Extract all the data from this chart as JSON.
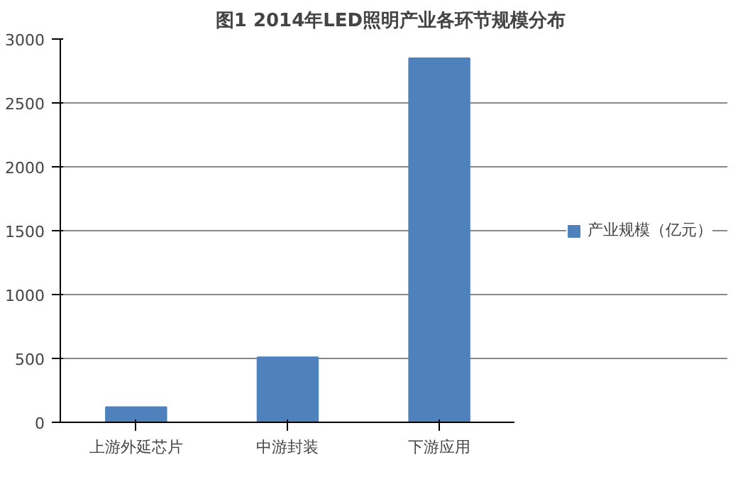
{
  "chart_data": {
    "type": "bar",
    "title": "图1  2014年LED照明产业各环节规模分布",
    "categories": [
      "上游外延芯片",
      "中游封装",
      "下游应用"
    ],
    "series": [
      {
        "name": "产业规模（亿元）",
        "color": "#4f81bd",
        "values": [
          120,
          510,
          2850
        ]
      }
    ],
    "ylim": [
      0,
      3000
    ],
    "yticks": [
      0,
      500,
      1000,
      1500,
      2000,
      2500,
      3000
    ],
    "grid": "y",
    "legend": "right"
  }
}
